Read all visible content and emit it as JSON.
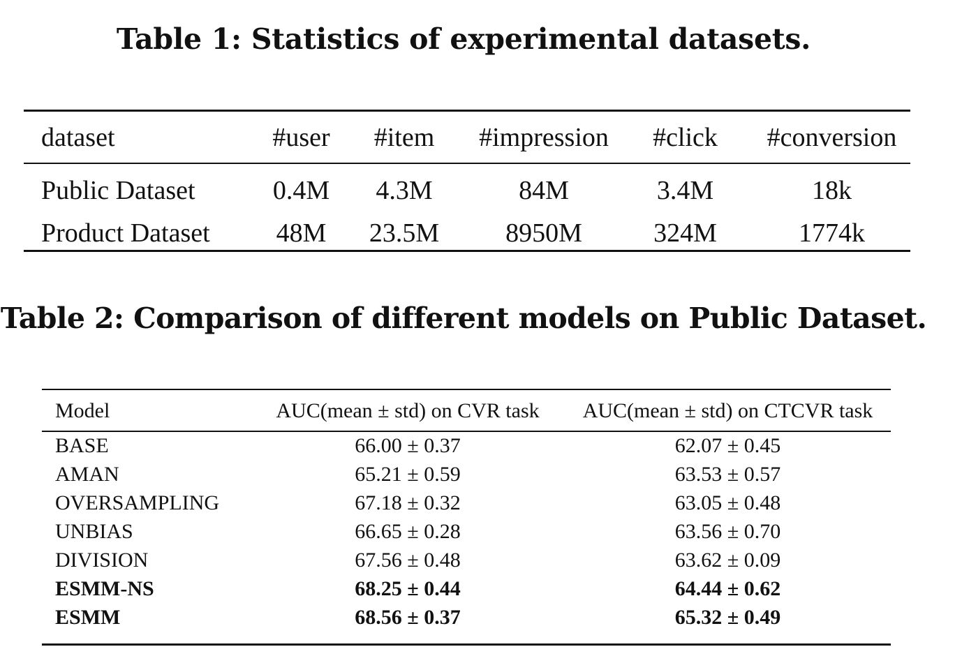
{
  "table1": {
    "caption": "Table 1: Statistics of experimental datasets.",
    "columns": [
      "dataset",
      "#user",
      "#item",
      "#impression",
      "#click",
      "#conversion"
    ],
    "rows": [
      [
        "Public Dataset",
        "0.4M",
        "4.3M",
        "84M",
        "3.4M",
        "18k"
      ],
      [
        "Product Dataset",
        "48M",
        "23.5M",
        "8950M",
        "324M",
        "1774k"
      ]
    ]
  },
  "table2": {
    "caption": "Table 2: Comparison of different models on Public Dataset.",
    "columns": [
      "Model",
      "AUC(mean ± std) on CVR task",
      "AUC(mean ± std) on CTCVR task"
    ],
    "rows": [
      {
        "model": "BASE",
        "cvr": "66.00 ± 0.37",
        "ctcvr": "62.07 ± 0.45",
        "bold": false
      },
      {
        "model": "AMAN",
        "cvr": "65.21 ± 0.59",
        "ctcvr": "63.53 ± 0.57",
        "bold": false
      },
      {
        "model": "OVERSAMPLING",
        "cvr": "67.18 ± 0.32",
        "ctcvr": "63.05 ± 0.48",
        "bold": false
      },
      {
        "model": "UNBIAS",
        "cvr": "66.65 ± 0.28",
        "ctcvr": "63.56 ± 0.70",
        "bold": false
      },
      {
        "model": "DIVISION",
        "cvr": "67.56 ± 0.48",
        "ctcvr": "63.62 ± 0.09",
        "bold": false
      },
      {
        "model": "ESMM-NS",
        "cvr": "68.25 ± 0.44",
        "ctcvr": "64.44 ± 0.62",
        "bold": true
      },
      {
        "model": "ESMM",
        "cvr": "68.56 ± 0.37",
        "ctcvr": "65.32 ± 0.49",
        "bold": true
      }
    ]
  }
}
